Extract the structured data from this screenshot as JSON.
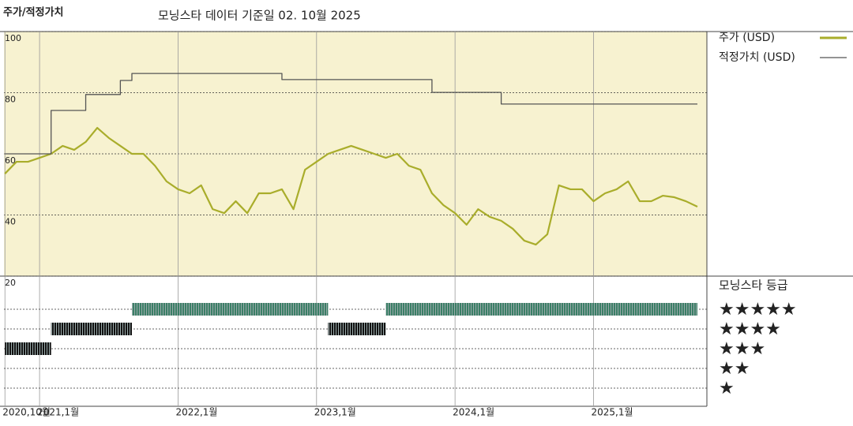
{
  "header": {
    "title": "주가/적정가치",
    "subtitle": "모닝스타 데이터 기준일 02. 10월 2025"
  },
  "chart_data": [
    {
      "type": "line",
      "ylim": [
        20,
        100
      ],
      "yticks": [
        20,
        40,
        60,
        80,
        100
      ],
      "grid": true,
      "xlim": [
        "2020-10",
        "2025-10"
      ],
      "xticks": [
        {
          "value": "2020-10",
          "label": "2020,10월"
        },
        {
          "value": "2021-01",
          "label": "2021,1월"
        },
        {
          "value": "2022-01",
          "label": "2022,1월"
        },
        {
          "value": "2023-01",
          "label": "2023,1월"
        },
        {
          "value": "2024-01",
          "label": "2024,1월"
        },
        {
          "value": "2025-01",
          "label": "2025,1월"
        }
      ],
      "legend": "right",
      "series": [
        {
          "name": "주가 (USD)",
          "color": "#a9ad2b",
          "step": false,
          "x": [
            "2020-10",
            "2020-11",
            "2020-12",
            "2021-01",
            "2021-02",
            "2021-03",
            "2021-04",
            "2021-05",
            "2021-06",
            "2021-07",
            "2021-08",
            "2021-09",
            "2021-10",
            "2021-11",
            "2021-12",
            "2022-01",
            "2022-02",
            "2022-03",
            "2022-04",
            "2022-05",
            "2022-06",
            "2022-07",
            "2022-08",
            "2022-09",
            "2022-10",
            "2022-11",
            "2022-12",
            "2023-01",
            "2023-02",
            "2023-03",
            "2023-04",
            "2023-05",
            "2023-06",
            "2023-07",
            "2023-08",
            "2023-09",
            "2023-10",
            "2023-11",
            "2023-12",
            "2024-01",
            "2024-02",
            "2024-03",
            "2024-04",
            "2024-05",
            "2024-06",
            "2024-07",
            "2024-08",
            "2024-09",
            "2024-10",
            "2024-11",
            "2024-12",
            "2025-01",
            "2025-02",
            "2025-03",
            "2025-04",
            "2025-05",
            "2025-06",
            "2025-07",
            "2025-08",
            "2025-09",
            "2025-10"
          ],
          "values": [
            53.5,
            57.4,
            57.4,
            58.7,
            60,
            62.6,
            61.3,
            63.9,
            68.5,
            65.2,
            62.6,
            60,
            60,
            56.1,
            51,
            48.4,
            47.1,
            49.7,
            41.9,
            40.6,
            44.5,
            40.6,
            47.1,
            47.1,
            48.4,
            41.9,
            54.8,
            57.4,
            60,
            61.3,
            62.6,
            61.3,
            60,
            58.7,
            60,
            56.1,
            54.8,
            47.1,
            43.2,
            40.6,
            36.8,
            41.9,
            39.4,
            38.1,
            35.5,
            31.6,
            30.3,
            33.7,
            49.7,
            48.4,
            48.4,
            44.5,
            47.1,
            48.4,
            51,
            44.5,
            44.5,
            46.3,
            45.8,
            44.5,
            42.7
          ]
        },
        {
          "name": "적정가치 (USD)",
          "color": "#555555",
          "step": true,
          "x": [
            "2020-10",
            "2021-02",
            "2021-05",
            "2021-08",
            "2021-09",
            "2022-10",
            "2023-11",
            "2024-05",
            "2025-10"
          ],
          "values": [
            60,
            74.2,
            79.4,
            84,
            86.3,
            84.3,
            80.1,
            76.3,
            76.3
          ]
        }
      ]
    },
    {
      "type": "rating-timeline",
      "title": "모닝스타 등급",
      "rows": [
        {
          "label": "★★★★★",
          "value": 5,
          "color": "#3b7f66"
        },
        {
          "label": "★★★★",
          "value": 4,
          "color": "#111111"
        },
        {
          "label": "★★★",
          "value": 3,
          "color": "#111111"
        },
        {
          "label": "★★",
          "value": 2,
          "color": "#111111"
        },
        {
          "label": "★",
          "value": 1,
          "color": "#111111"
        }
      ],
      "segments": [
        {
          "start": "2020-10",
          "end": "2021-02",
          "rating": 3
        },
        {
          "start": "2021-02",
          "end": "2021-09",
          "rating": 4
        },
        {
          "start": "2021-09",
          "end": "2023-02",
          "rating": 5
        },
        {
          "start": "2023-02",
          "end": "2023-07",
          "rating": 4
        },
        {
          "start": "2023-07",
          "end": "2025-10",
          "rating": 5
        }
      ]
    }
  ]
}
